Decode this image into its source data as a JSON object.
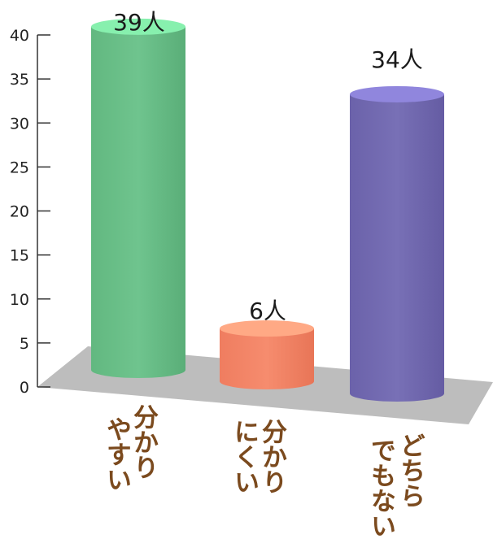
{
  "chart_data": {
    "type": "bar",
    "categories": [
      {
        "lines": [
          "分かり",
          "やすい"
        ]
      },
      {
        "lines": [
          "分かり",
          "にくい"
        ]
      },
      {
        "lines": [
          "どちら",
          "でもない"
        ]
      }
    ],
    "values": [
      39,
      6,
      34
    ],
    "data_labels": [
      "39人",
      "6人",
      "34人"
    ],
    "yticks": [
      "0",
      "5",
      "10",
      "15",
      "20",
      "25",
      "30",
      "35",
      "40"
    ],
    "ylim": [
      0,
      40
    ],
    "grid": false,
    "colors": [
      "#6cc08b",
      "#f4876a",
      "#736bb1"
    ],
    "floor_color": "#bdbdbd",
    "label_color": "#7b4a1e"
  }
}
